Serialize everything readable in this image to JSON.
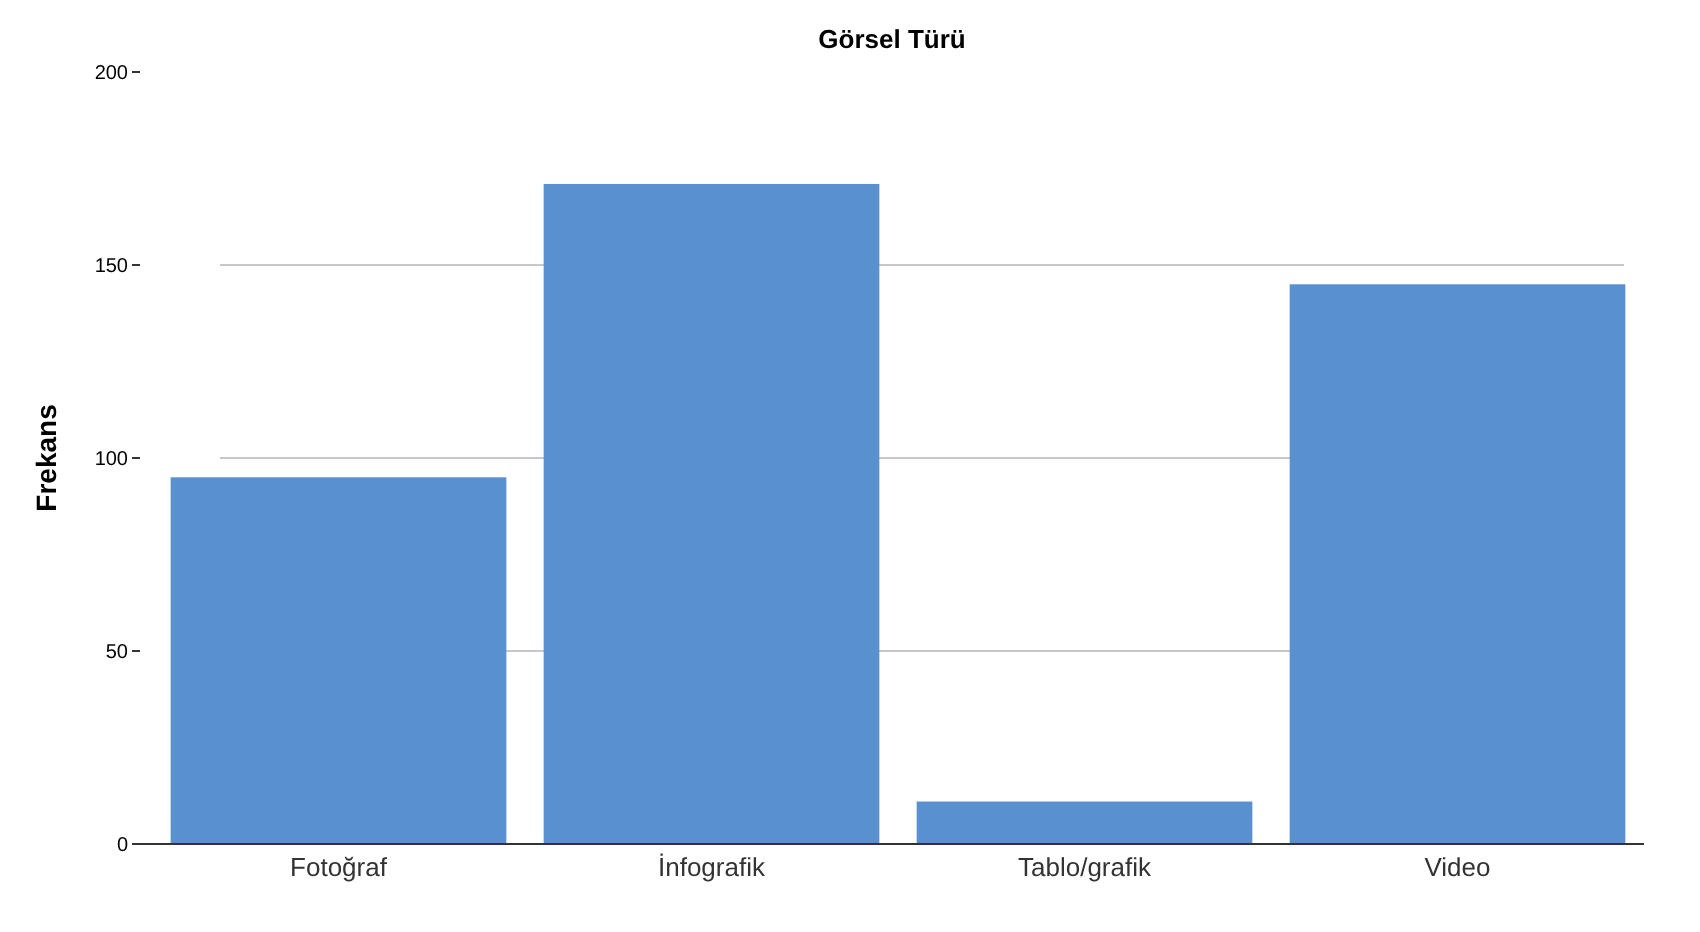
{
  "chart_data": {
    "type": "bar",
    "title": "Görsel Türü",
    "ylabel": "Frekans",
    "categories": [
      "Fotoğraf",
      "İnfografik",
      "Tablo/grafik",
      "Video"
    ],
    "values": [
      95,
      171,
      11,
      145
    ],
    "color": "#5990cf",
    "ylim": [
      0,
      200
    ],
    "yticks": [
      0,
      50,
      100,
      150,
      200
    ],
    "grid": "y"
  }
}
